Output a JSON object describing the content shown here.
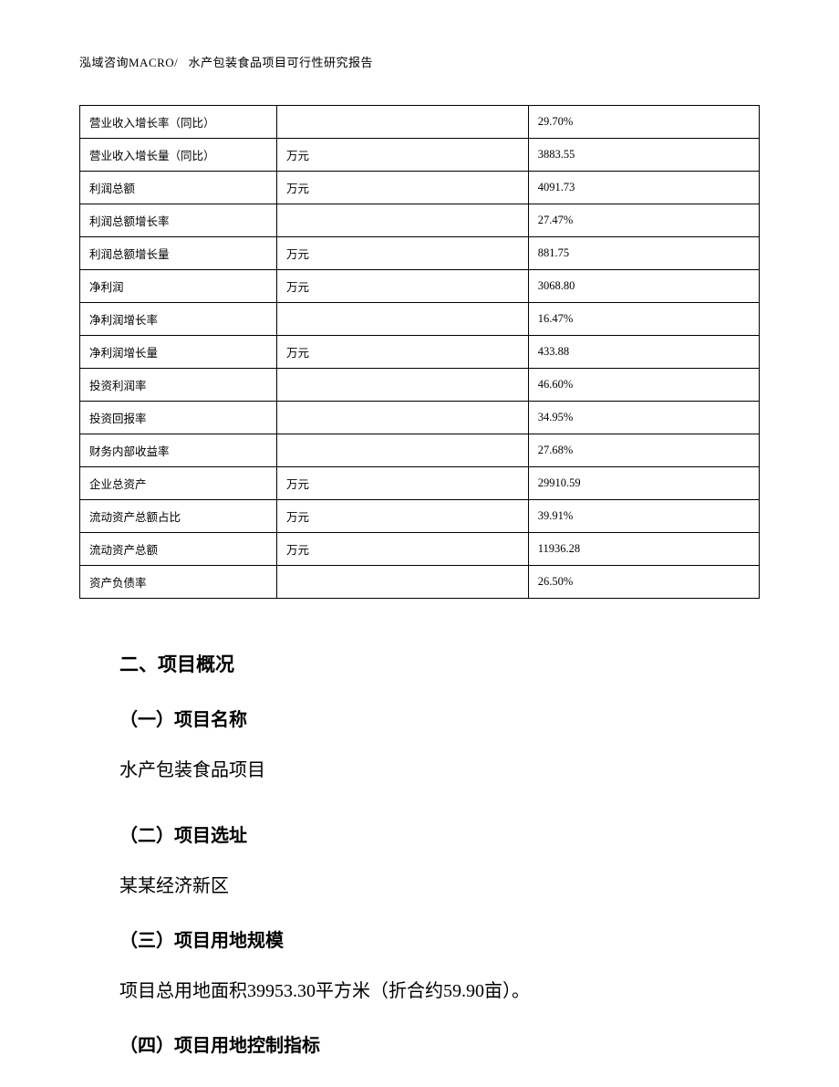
{
  "header": {
    "company": "泓域咨询MACRO/",
    "title": "水产包装食品项目可行性研究报告"
  },
  "table": {
    "rows": [
      {
        "label": "营业收入增长率（同比）",
        "unit": "",
        "value": "29.70%"
      },
      {
        "label": "营业收入增长量（同比）",
        "unit": "万元",
        "value": "3883.55"
      },
      {
        "label": "利润总额",
        "unit": "万元",
        "value": "4091.73"
      },
      {
        "label": "利润总额增长率",
        "unit": "",
        "value": "27.47%"
      },
      {
        "label": "利润总额增长量",
        "unit": "万元",
        "value": "881.75"
      },
      {
        "label": "净利润",
        "unit": "万元",
        "value": "3068.80"
      },
      {
        "label": "净利润增长率",
        "unit": "",
        "value": "16.47%"
      },
      {
        "label": "净利润增长量",
        "unit": "万元",
        "value": "433.88"
      },
      {
        "label": "投资利润率",
        "unit": "",
        "value": "46.60%"
      },
      {
        "label": "投资回报率",
        "unit": "",
        "value": "34.95%"
      },
      {
        "label": "财务内部收益率",
        "unit": "",
        "value": "27.68%"
      },
      {
        "label": "企业总资产",
        "unit": "万元",
        "value": "29910.59"
      },
      {
        "label": "流动资产总额占比",
        "unit": "万元",
        "value": "39.91%"
      },
      {
        "label": "流动资产总额",
        "unit": "万元",
        "value": "11936.28"
      },
      {
        "label": "资产负债率",
        "unit": "",
        "value": "26.50%"
      }
    ]
  },
  "sections": {
    "main_heading": "二、项目概况",
    "s1_heading": "（一）项目名称",
    "s1_body": "水产包装食品项目",
    "s2_heading": "（二）项目选址",
    "s2_body": "某某经济新区",
    "s3_heading": "（三）项目用地规模",
    "s3_body": "项目总用地面积39953.30平方米（折合约59.90亩）。",
    "s4_heading": "（四）项目用地控制指标"
  }
}
